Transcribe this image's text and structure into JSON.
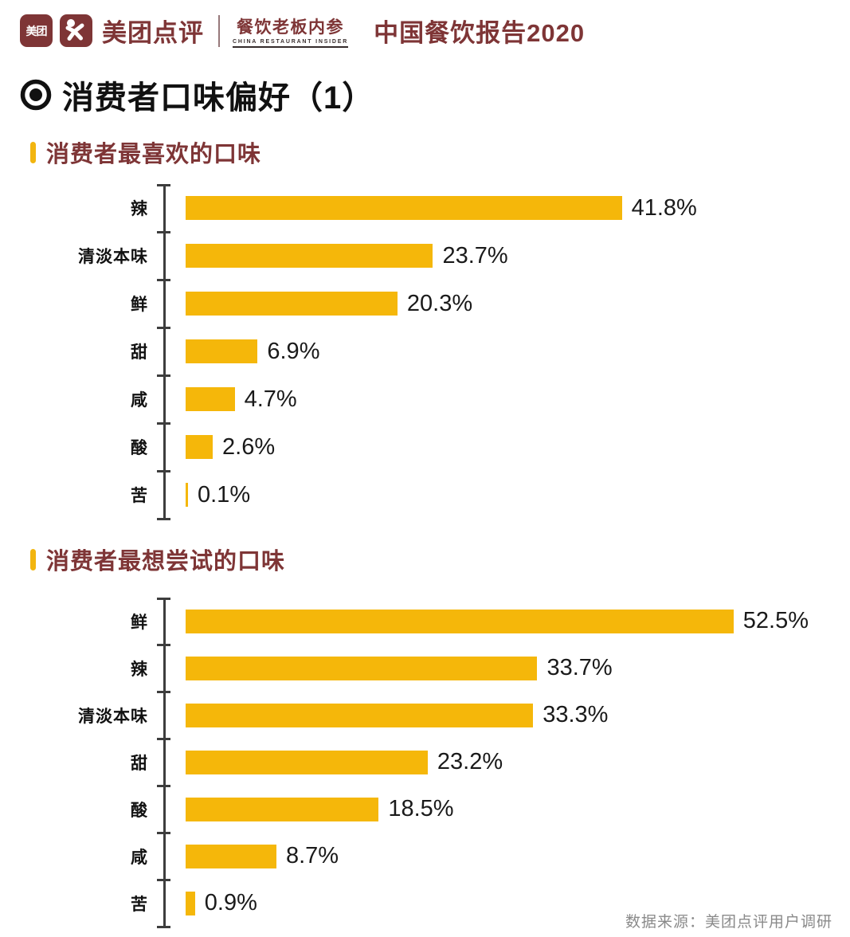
{
  "header": {
    "logo_meituan_text": "美团",
    "brand_name": "美团点评",
    "sub_brand": "餐饮老板内参",
    "sub_brand_en": "CHINA RESTAURANT INSIDER",
    "report_title": "中国餐饮报告2020"
  },
  "page_title": "消费者口味偏好（1）",
  "colors": {
    "brand_maroon": "#7E3536",
    "bar_gold": "#F5B70A",
    "axis_dark": "#3D3D3D",
    "text_black": "#1A1A1A",
    "source_gray": "#8A8A8A"
  },
  "chart_data": [
    {
      "type": "bar",
      "orientation": "horizontal",
      "title": "消费者最喜欢的口味",
      "categories": [
        "辣",
        "清淡本味",
        "鲜",
        "甜",
        "咸",
        "酸",
        "苦"
      ],
      "values": [
        41.8,
        23.7,
        20.3,
        6.9,
        4.7,
        2.6,
        0.1
      ],
      "value_suffix": "%",
      "xlim": [
        0,
        61
      ],
      "grid": false,
      "legend": false
    },
    {
      "type": "bar",
      "orientation": "horizontal",
      "title": "消费者最想尝试的口味",
      "categories": [
        "鲜",
        "辣",
        "清淡本味",
        "甜",
        "酸",
        "咸",
        "苦"
      ],
      "values": [
        52.5,
        33.7,
        33.3,
        23.2,
        18.5,
        8.7,
        0.9
      ],
      "value_suffix": "%",
      "xlim": [
        0,
        61
      ],
      "grid": false,
      "legend": false
    }
  ],
  "footer": {
    "source": "数据来源：美团点评用户调研"
  }
}
